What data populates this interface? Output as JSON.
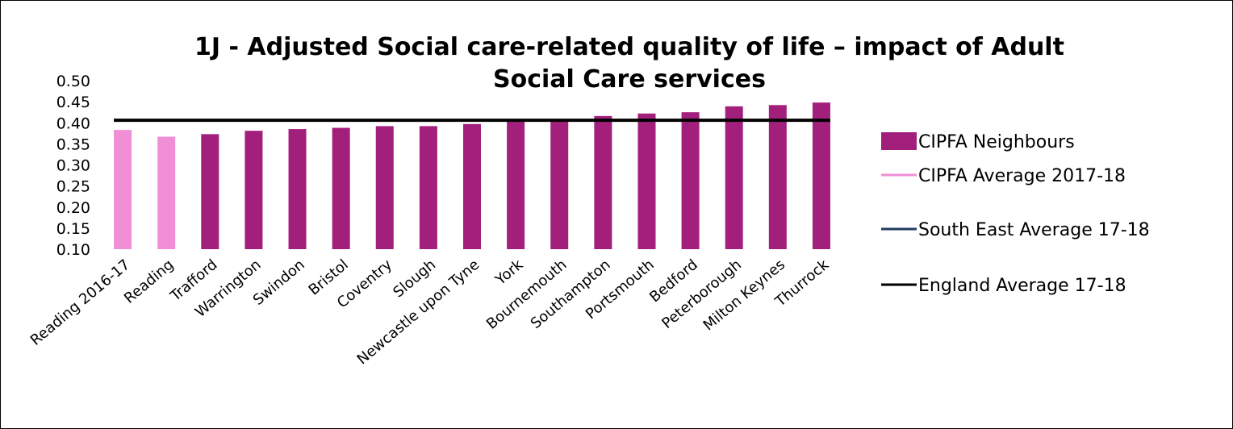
{
  "chart_data": {
    "type": "bar",
    "title_lines": [
      "1J - Adjusted Social care-related quality of life – impact of Adult",
      "Social Care services"
    ],
    "categories": [
      "Reading 2016-17",
      "Reading",
      "Trafford",
      "Warrington",
      "Swindon",
      "Bristol",
      "Coventry",
      "Slough",
      "Newcastle upon Tyne",
      "York",
      "Bournemouth",
      "Southampton",
      "Portsmouth",
      "Bedford",
      "Peterborough",
      "Milton Keynes",
      "Thurrock"
    ],
    "values": [
      0.383,
      0.367,
      0.373,
      0.381,
      0.385,
      0.388,
      0.392,
      0.392,
      0.397,
      0.403,
      0.405,
      0.416,
      0.422,
      0.425,
      0.439,
      0.442,
      0.448
    ],
    "highlight_count": 2,
    "y_ticks": [
      "0.10",
      "0.15",
      "0.20",
      "0.25",
      "0.30",
      "0.35",
      "0.40",
      "0.45",
      "0.50"
    ],
    "ylim": [
      0.1,
      0.5
    ],
    "reference_lines": [
      {
        "name": "England Average 17-18",
        "value": 0.406,
        "color": "#000000"
      }
    ],
    "colors": {
      "bar": "#a31f7c",
      "highlight": "#f08fd6",
      "south_east": "#1f3a5f",
      "england": "#000000"
    },
    "legend": {
      "position": "right",
      "entries": [
        {
          "label": "CIPFA Neighbours",
          "symbol": "box",
          "color": "#a31f7c"
        },
        {
          "label": "CIPFA Average 2017-18",
          "symbol": "line",
          "color": "#f08fd6"
        },
        {
          "label": "South East Average 17-18",
          "symbol": "line",
          "color": "#1f3a5f"
        },
        {
          "label": "England Average 17-18",
          "symbol": "line",
          "color": "#000000"
        }
      ]
    }
  }
}
